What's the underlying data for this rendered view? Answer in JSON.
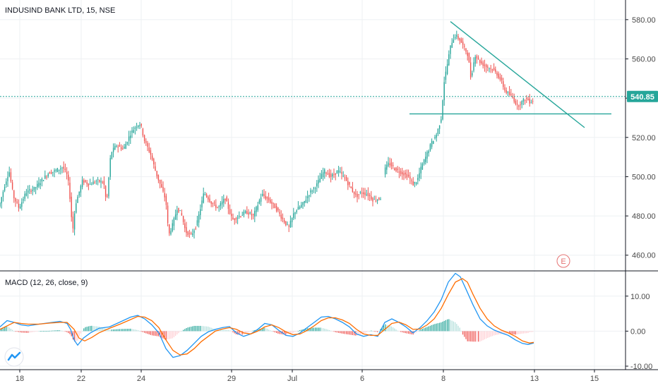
{
  "colors": {
    "up": "#26a69a",
    "down": "#ef5350",
    "trendline": "#26a69a",
    "macd_line": "#2196f3",
    "signal_line": "#ff6d00",
    "grid": "#eef0f3",
    "axis": "#131722"
  },
  "chart_data": [
    {
      "type": "line",
      "title": "INDUSIND BANK LTD, 15, NSE",
      "x_ticks": [
        "18",
        "22",
        "24",
        "29",
        "Jul",
        "6",
        "8",
        "13",
        "15"
      ],
      "y_ticks": [
        580,
        560,
        540,
        520,
        500,
        480,
        460
      ],
      "ylim": [
        452,
        590
      ],
      "last_price": "540.85",
      "grid": true,
      "event_marker": "E",
      "price_path": [
        [
          0,
          485
        ],
        [
          8,
          496
        ],
        [
          14,
          503
        ],
        [
          20,
          490
        ],
        [
          28,
          484
        ],
        [
          38,
          492
        ],
        [
          50,
          494
        ],
        [
          60,
          498
        ],
        [
          70,
          502
        ],
        [
          80,
          503
        ],
        [
          90,
          505
        ],
        [
          97,
          500
        ],
        [
          100,
          490
        ],
        [
          104,
          472
        ],
        [
          108,
          486
        ],
        [
          118,
          498
        ],
        [
          128,
          496
        ],
        [
          138,
          498
        ],
        [
          148,
          497
        ],
        [
          152,
          486
        ],
        [
          158,
          512
        ],
        [
          166,
          516
        ],
        [
          176,
          514
        ],
        [
          186,
          522
        ],
        [
          194,
          526
        ],
        [
          200,
          527
        ],
        [
          206,
          518
        ],
        [
          214,
          512
        ],
        [
          222,
          502
        ],
        [
          230,
          494
        ],
        [
          236,
          488
        ],
        [
          240,
          470
        ],
        [
          246,
          476
        ],
        [
          252,
          484
        ],
        [
          258,
          481
        ],
        [
          264,
          472
        ],
        [
          272,
          470
        ],
        [
          280,
          476
        ],
        [
          290,
          492
        ],
        [
          300,
          487
        ],
        [
          310,
          484
        ],
        [
          320,
          489
        ],
        [
          330,
          478
        ],
        [
          340,
          480
        ],
        [
          350,
          482
        ],
        [
          360,
          480
        ],
        [
          372,
          491
        ],
        [
          382,
          488
        ],
        [
          392,
          484
        ],
        [
          402,
          478
        ],
        [
          410,
          474
        ],
        [
          418,
          482
        ],
        [
          430,
          486
        ],
        [
          440,
          492
        ],
        [
          450,
          496
        ],
        [
          460,
          503
        ],
        [
          470,
          500
        ],
        [
          480,
          503
        ],
        [
          490,
          499
        ],
        [
          500,
          493
        ],
        [
          506,
          490
        ],
        [
          512,
          492
        ],
        [
          522,
          491
        ],
        [
          530,
          488
        ],
        [
          540,
          489
        ],
        [
          545,
          503
        ],
        [
          552,
          507
        ],
        [
          560,
          504
        ],
        [
          570,
          502
        ],
        [
          580,
          500
        ],
        [
          586,
          496
        ],
        [
          592,
          498
        ],
        [
          598,
          505
        ],
        [
          604,
          510
        ],
        [
          612,
          517
        ],
        [
          620,
          522
        ],
        [
          626,
          530
        ],
        [
          630,
          548
        ],
        [
          636,
          560
        ],
        [
          640,
          568
        ],
        [
          646,
          572
        ],
        [
          652,
          570
        ],
        [
          658,
          566
        ],
        [
          664,
          562
        ],
        [
          668,
          550
        ],
        [
          674,
          562
        ],
        [
          682,
          558
        ],
        [
          690,
          556
        ],
        [
          698,
          555
        ],
        [
          706,
          552
        ],
        [
          712,
          548
        ],
        [
          716,
          544
        ],
        [
          722,
          542
        ],
        [
          728,
          540
        ],
        [
          734,
          536
        ],
        [
          740,
          538
        ],
        [
          746,
          540
        ],
        [
          752,
          538
        ],
        [
          756,
          539
        ]
      ],
      "trendline_1": [
        [
          638,
          579
        ],
        [
          828,
          525
        ]
      ],
      "trendline_2": [
        [
          580,
          532
        ],
        [
          866,
          532
        ]
      ]
    },
    {
      "type": "line",
      "title": "MACD (12, 26, close, 9)",
      "y_ticks": [
        10.0,
        0.0,
        -10.0
      ],
      "y_tick_labels": [
        "10.00",
        "0.00",
        "-10.00"
      ],
      "ylim": [
        -11,
        17
      ],
      "series": [
        {
          "name": "MACD",
          "points": [
            [
              0,
              1.2
            ],
            [
              10,
              3
            ],
            [
              20,
              2.5
            ],
            [
              30,
              1.8
            ],
            [
              40,
              1.5
            ],
            [
              55,
              2
            ],
            [
              70,
              2.4
            ],
            [
              85,
              2.8
            ],
            [
              95,
              2.2
            ],
            [
              100,
              0.5
            ],
            [
              105,
              -2.5
            ],
            [
              110,
              -4
            ],
            [
              118,
              -2
            ],
            [
              128,
              -0.5
            ],
            [
              140,
              0.8
            ],
            [
              155,
              1.2
            ],
            [
              170,
              2.6
            ],
            [
              185,
              4
            ],
            [
              195,
              4.5
            ],
            [
              205,
              3.5
            ],
            [
              215,
              1.8
            ],
            [
              225,
              -0.5
            ],
            [
              235,
              -5
            ],
            [
              245,
              -7.5
            ],
            [
              255,
              -7
            ],
            [
              265,
              -5.5
            ],
            [
              275,
              -3.5
            ],
            [
              285,
              -1.5
            ],
            [
              295,
              -0.2
            ],
            [
              305,
              0.5
            ],
            [
              315,
              1
            ],
            [
              325,
              1.3
            ],
            [
              335,
              -0.5
            ],
            [
              345,
              -1.5
            ],
            [
              355,
              -0.8
            ],
            [
              365,
              0.5
            ],
            [
              375,
              2.2
            ],
            [
              385,
              1.8
            ],
            [
              395,
              0.2
            ],
            [
              405,
              -1.2
            ],
            [
              415,
              -1.5
            ],
            [
              425,
              -0.5
            ],
            [
              435,
              1
            ],
            [
              445,
              2.5
            ],
            [
              455,
              4
            ],
            [
              465,
              4.2
            ],
            [
              475,
              3.5
            ],
            [
              485,
              2.5
            ],
            [
              495,
              1.2
            ],
            [
              505,
              -0.8
            ],
            [
              515,
              -1.5
            ],
            [
              525,
              -1
            ],
            [
              535,
              -1.5
            ],
            [
              545,
              2.5
            ],
            [
              555,
              3.5
            ],
            [
              565,
              2.5
            ],
            [
              575,
              1.2
            ],
            [
              585,
              -0.5
            ],
            [
              595,
              1
            ],
            [
              605,
              3
            ],
            [
              615,
              5.5
            ],
            [
              625,
              9
            ],
            [
              635,
              14
            ],
            [
              645,
              16.5
            ],
            [
              652,
              15.5
            ],
            [
              660,
              12
            ],
            [
              670,
              7.5
            ],
            [
              680,
              3.5
            ],
            [
              690,
              1.5
            ],
            [
              700,
              0.3
            ],
            [
              710,
              -0.5
            ],
            [
              720,
              -1.2
            ],
            [
              730,
              -2.5
            ],
            [
              740,
              -3.5
            ],
            [
              748,
              -3.8
            ],
            [
              756,
              -3.4
            ]
          ]
        },
        {
          "name": "Signal",
          "points": [
            [
              0,
              0.5
            ],
            [
              10,
              1.5
            ],
            [
              20,
              2.5
            ],
            [
              30,
              2.2
            ],
            [
              40,
              2
            ],
            [
              55,
              2
            ],
            [
              70,
              2.3
            ],
            [
              85,
              2.5
            ],
            [
              95,
              2.5
            ],
            [
              105,
              0.5
            ],
            [
              112,
              -2
            ],
            [
              120,
              -2.8
            ],
            [
              130,
              -1.8
            ],
            [
              140,
              -0.5
            ],
            [
              155,
              0.8
            ],
            [
              170,
              2
            ],
            [
              185,
              3.3
            ],
            [
              195,
              4.2
            ],
            [
              205,
              4
            ],
            [
              215,
              3
            ],
            [
              225,
              1
            ],
            [
              235,
              -2.5
            ],
            [
              245,
              -5.5
            ],
            [
              255,
              -6.8
            ],
            [
              265,
              -6.5
            ],
            [
              275,
              -5
            ],
            [
              285,
              -3
            ],
            [
              295,
              -1.5
            ],
            [
              305,
              0
            ],
            [
              315,
              0.6
            ],
            [
              325,
              1
            ],
            [
              335,
              0.5
            ],
            [
              345,
              -0.5
            ],
            [
              355,
              -0.8
            ],
            [
              365,
              0
            ],
            [
              375,
              1.2
            ],
            [
              385,
              1.8
            ],
            [
              395,
              1
            ],
            [
              405,
              -0.2
            ],
            [
              415,
              -1
            ],
            [
              425,
              -0.8
            ],
            [
              435,
              0.2
            ],
            [
              445,
              1.5
            ],
            [
              455,
              3
            ],
            [
              465,
              3.8
            ],
            [
              475,
              3.8
            ],
            [
              485,
              3.2
            ],
            [
              495,
              2.2
            ],
            [
              505,
              0.5
            ],
            [
              515,
              -0.8
            ],
            [
              525,
              -1.2
            ],
            [
              535,
              -1.2
            ],
            [
              545,
              0.5
            ],
            [
              555,
              2.2
            ],
            [
              565,
              2.6
            ],
            [
              575,
              1.8
            ],
            [
              585,
              0.5
            ],
            [
              595,
              0.6
            ],
            [
              605,
              1.8
            ],
            [
              615,
              3.5
            ],
            [
              625,
              6.5
            ],
            [
              635,
              10.5
            ],
            [
              645,
              14
            ],
            [
              655,
              15
            ],
            [
              662,
              14
            ],
            [
              670,
              10.5
            ],
            [
              680,
              6.5
            ],
            [
              690,
              3.5
            ],
            [
              700,
              1.5
            ],
            [
              710,
              0.3
            ],
            [
              720,
              -0.5
            ],
            [
              730,
              -1.5
            ],
            [
              740,
              -2.8
            ],
            [
              750,
              -3.4
            ],
            [
              756,
              -3.2
            ]
          ]
        }
      ]
    }
  ]
}
